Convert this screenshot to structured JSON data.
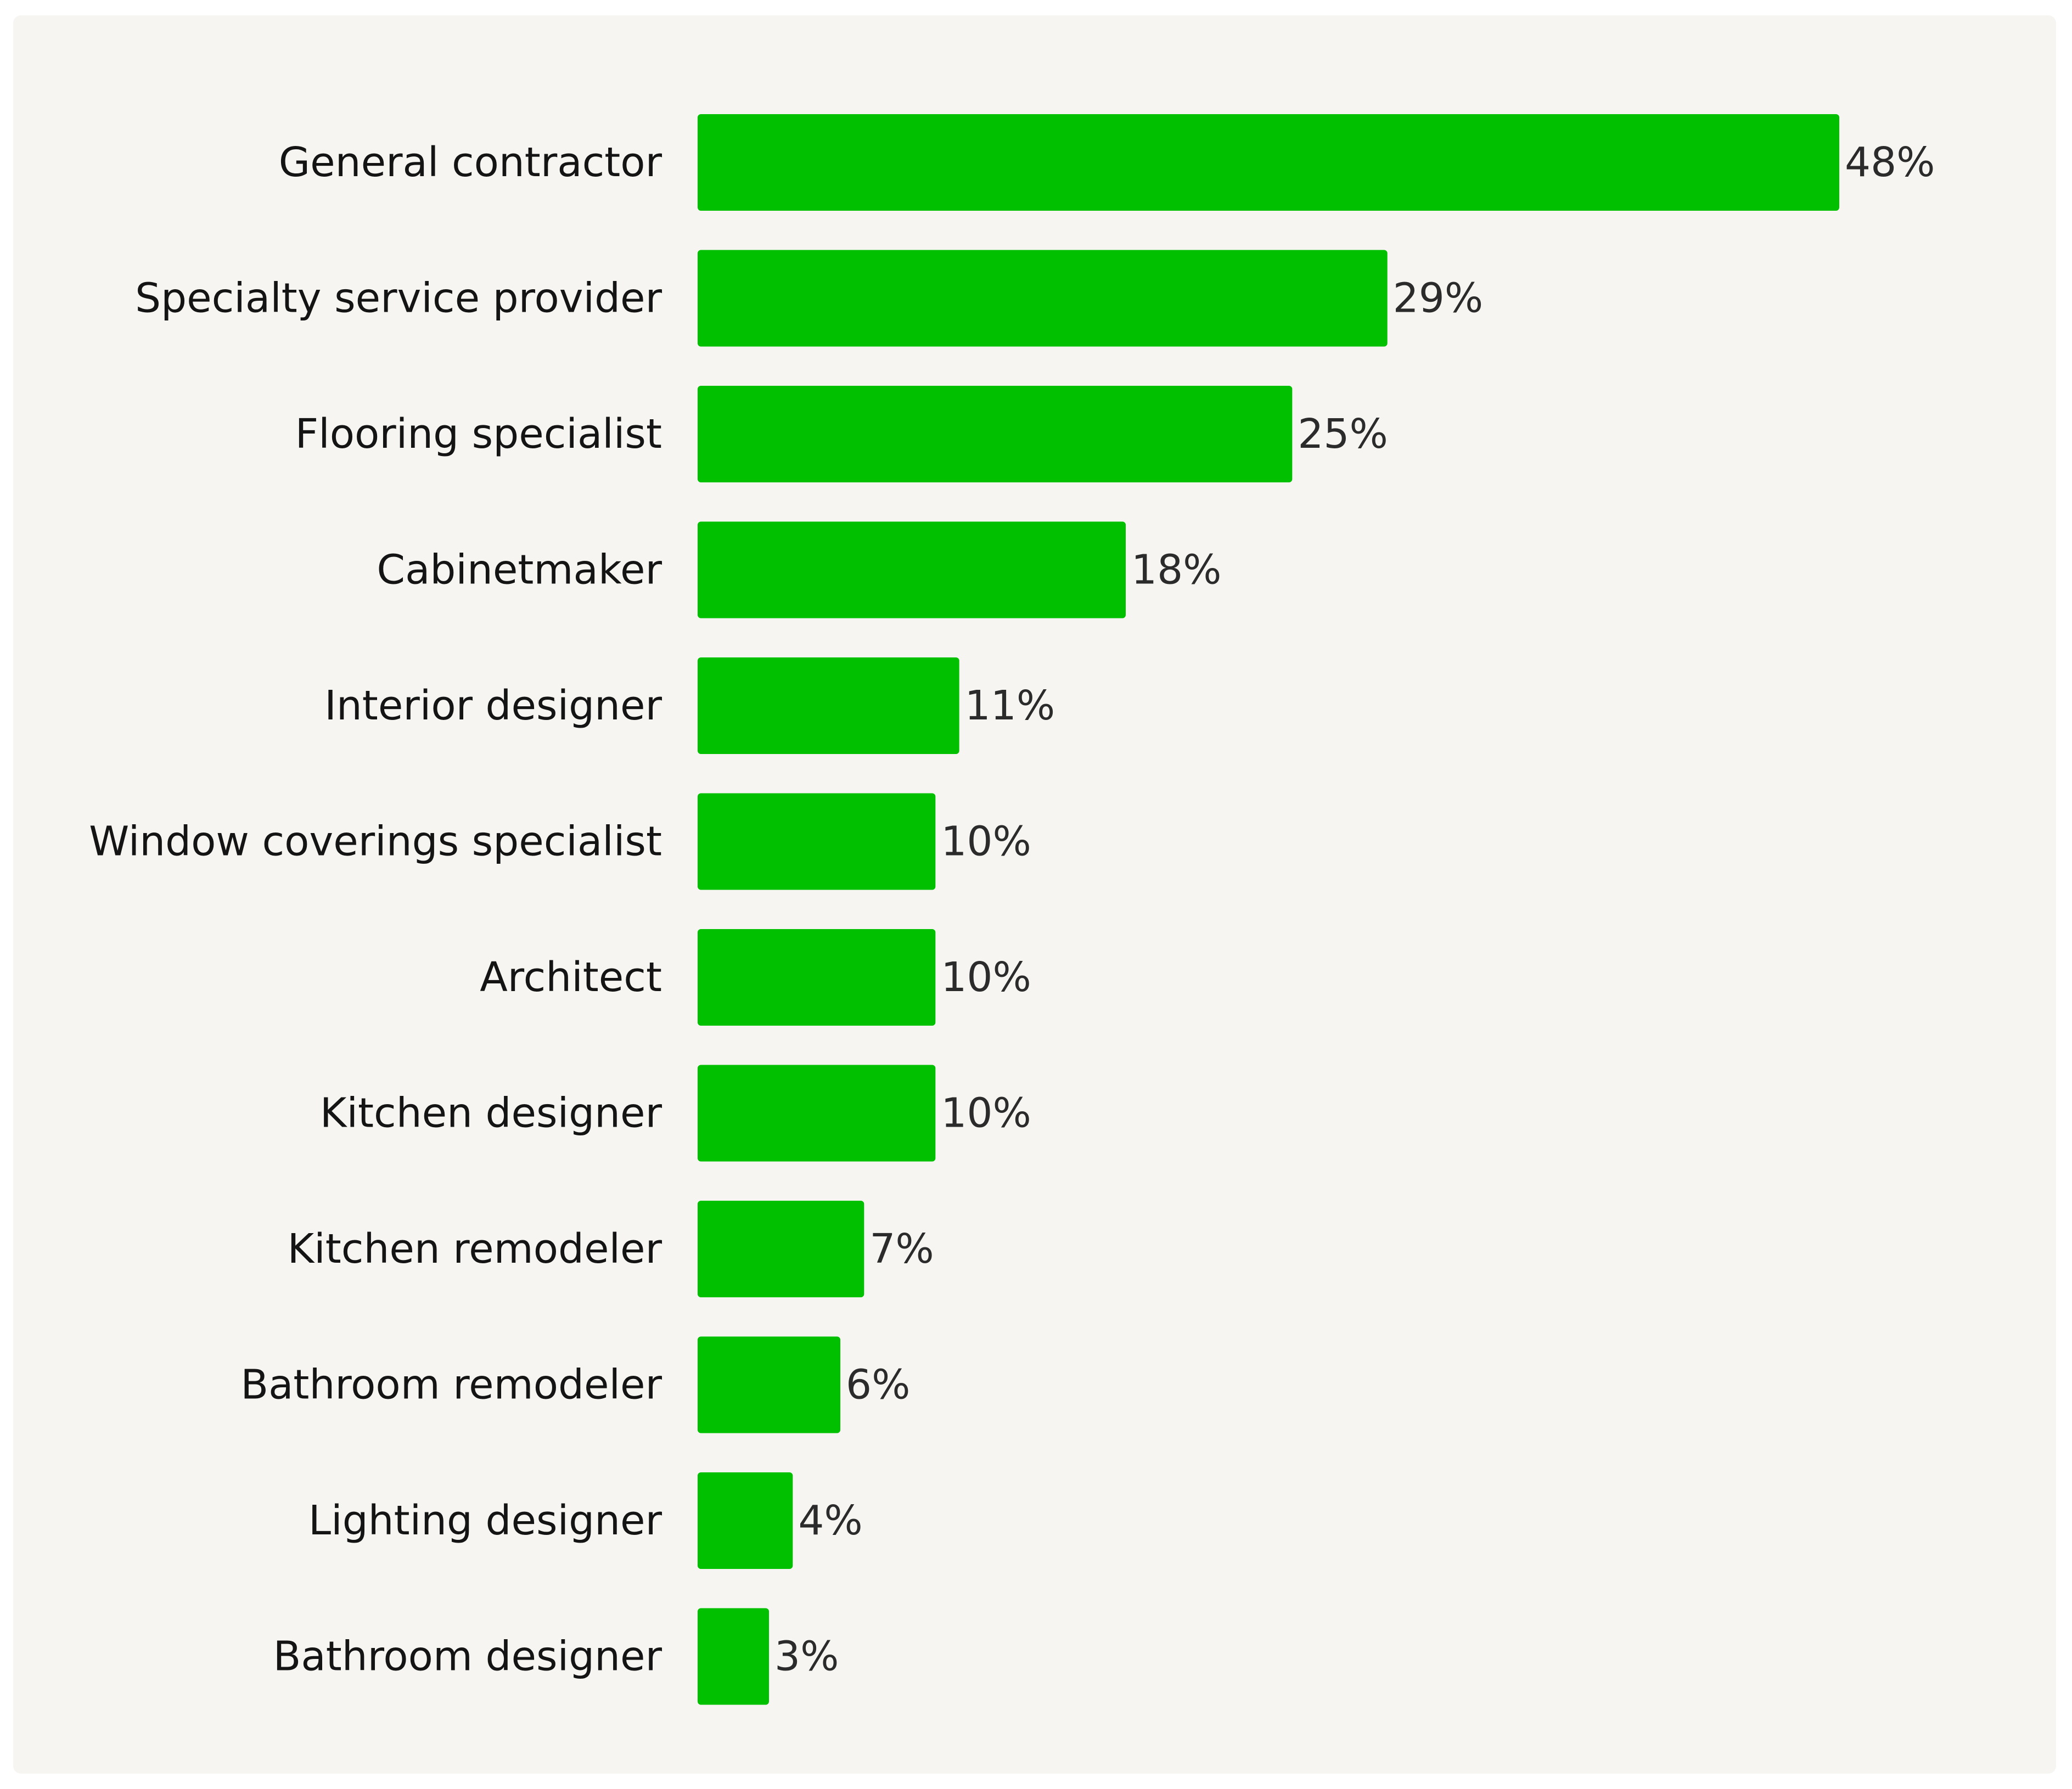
{
  "colors": {
    "background": "#f6f5f2",
    "bar": "#00c000",
    "label_text": "#141414",
    "value_text": "#2b2b2b"
  },
  "chart_data": {
    "type": "bar",
    "orientation": "horizontal",
    "title": "",
    "xlabel": "",
    "ylabel": "",
    "xlim": [
      0,
      48
    ],
    "grid": false,
    "legend": "none",
    "value_suffix": "%",
    "categories": [
      "General contractor",
      "Specialty service provider",
      "Flooring specialist",
      "Cabinetmaker",
      "Interior designer",
      "Window coverings specialist",
      "Architect",
      "Kitchen designer",
      "Kitchen remodeler",
      "Bathroom remodeler",
      "Lighting designer",
      "Bathroom designer"
    ],
    "values": [
      48,
      29,
      25,
      18,
      11,
      10,
      10,
      10,
      7,
      6,
      4,
      3
    ],
    "value_labels": [
      "48%",
      "29%",
      "25%",
      "18%",
      "11%",
      "10%",
      "10%",
      "10%",
      "7%",
      "6%",
      "4%",
      "3%"
    ]
  }
}
